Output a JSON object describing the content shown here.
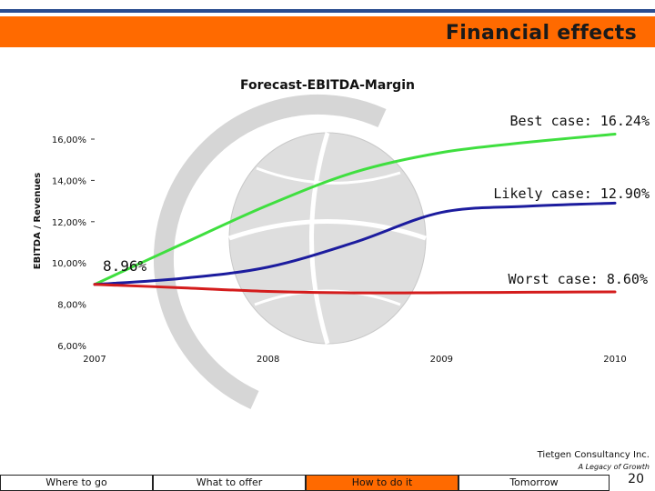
{
  "header": {
    "title": "Financial effects",
    "bar_color": "#ff6a00",
    "rule_color": "#2a4d8f"
  },
  "chart_data": {
    "type": "line",
    "title": "Forecast-EBITDA-Margin",
    "xlabel": "",
    "ylabel": "EBITDA / Revenues",
    "x": [
      "2007",
      "2008",
      "2009",
      "2010"
    ],
    "y_ticks": [
      "16,00%",
      "14,00%",
      "12,00%",
      "10,00%",
      "8,00%",
      "6,00%"
    ],
    "ylim": [
      6,
      16
    ],
    "grid": false,
    "series": [
      {
        "name": "Best case",
        "color": "#3fdf3f",
        "points": [
          [
            2007.0,
            8.96
          ],
          [
            2007.5,
            10.9
          ],
          [
            2008.0,
            12.8
          ],
          [
            2008.5,
            14.4
          ],
          [
            2009.0,
            15.35
          ],
          [
            2009.5,
            15.85
          ],
          [
            2010.0,
            16.24
          ]
        ]
      },
      {
        "name": "Likely case",
        "color": "#1c1c9e",
        "points": [
          [
            2007.0,
            8.96
          ],
          [
            2007.5,
            9.25
          ],
          [
            2008.0,
            9.8
          ],
          [
            2008.5,
            11.0
          ],
          [
            2009.0,
            12.45
          ],
          [
            2009.5,
            12.75
          ],
          [
            2010.0,
            12.9
          ]
        ]
      },
      {
        "name": "Worst case",
        "color": "#d41c1c",
        "points": [
          [
            2007.0,
            8.96
          ],
          [
            2007.5,
            8.8
          ],
          [
            2008.0,
            8.62
          ],
          [
            2008.5,
            8.55
          ],
          [
            2009.0,
            8.56
          ],
          [
            2009.5,
            8.58
          ],
          [
            2010.0,
            8.6
          ]
        ]
      }
    ],
    "annotations": {
      "start": "8.96%",
      "best": "Best case: 16.24%",
      "likely": "Likely case: 12.90%",
      "worst": "Worst case: 8.60%"
    }
  },
  "footer": {
    "company": "Tietgen Consultancy Inc.",
    "tagline": "A Legacy of Growth",
    "page_number": "20",
    "nav": [
      {
        "label": "Where to go",
        "active": false
      },
      {
        "label": "What to offer",
        "active": false
      },
      {
        "label": "How to do it",
        "active": true
      },
      {
        "label": "Tomorrow",
        "active": false
      }
    ],
    "active_color": "#ff6a00"
  }
}
